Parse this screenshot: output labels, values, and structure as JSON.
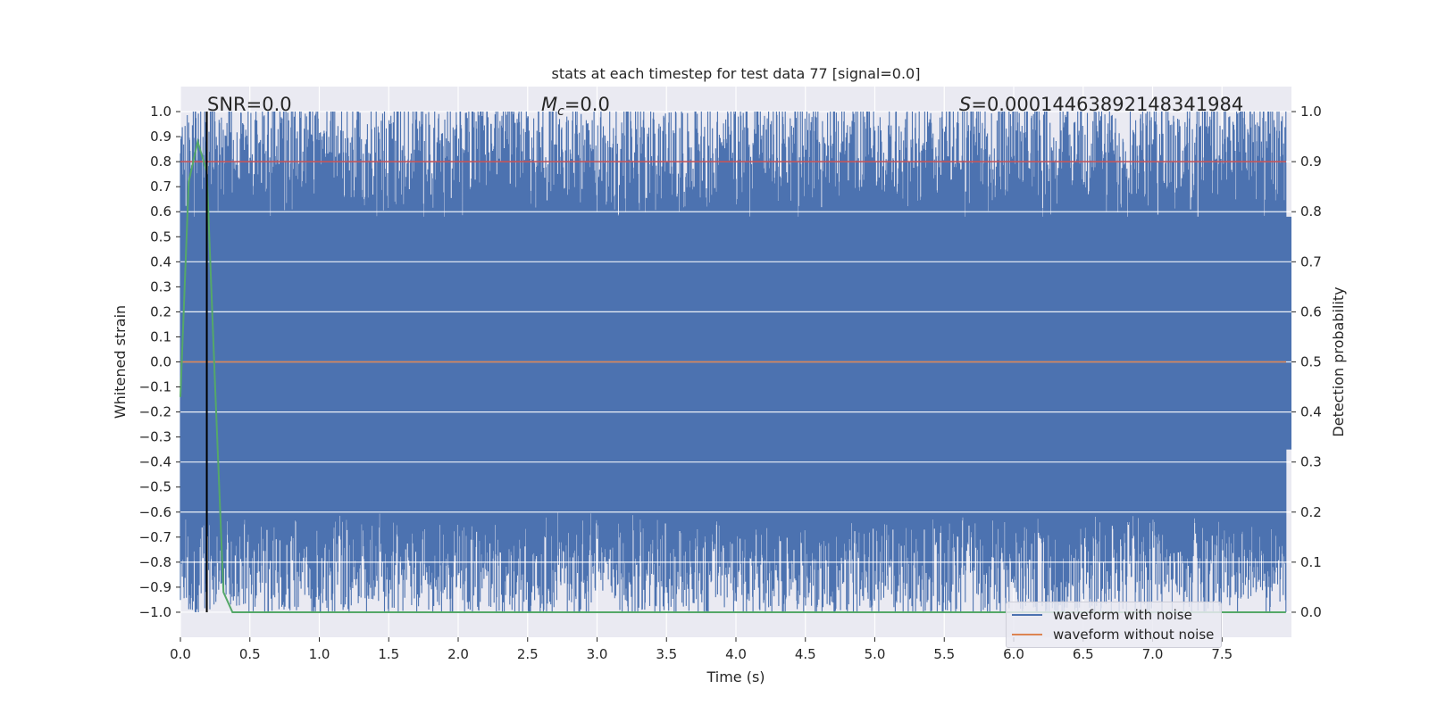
{
  "chart_data": {
    "type": "line",
    "title": "stats at each timestep for test data 77 [signal=0.0]",
    "xlabel": "Time (s)",
    "ylabel_left": "Whitened strain",
    "ylabel_right": "Detection probability",
    "xlim": [
      0.0,
      8.0
    ],
    "ylim_left": [
      -1.1,
      1.1
    ],
    "ylim_right": [
      -0.05,
      1.05
    ],
    "x_ticks": [
      "0.0",
      "0.5",
      "1.0",
      "1.5",
      "2.0",
      "2.5",
      "3.0",
      "3.5",
      "4.0",
      "4.5",
      "5.0",
      "5.5",
      "6.0",
      "6.5",
      "7.0",
      "7.5"
    ],
    "y_left_ticks": [
      "1.0",
      "0.9",
      "0.8",
      "0.7",
      "0.6",
      "0.5",
      "0.4",
      "0.3",
      "0.2",
      "0.1",
      "0.0",
      "−0.1",
      "−0.2",
      "−0.3",
      "−0.4",
      "−0.5",
      "−0.6",
      "−0.7",
      "−0.8",
      "−0.9",
      "−1.0"
    ],
    "y_right_ticks": [
      "1.0",
      "0.9",
      "0.8",
      "0.7",
      "0.6",
      "0.5",
      "0.4",
      "0.3",
      "0.2",
      "0.1",
      "0.0"
    ],
    "annotations": {
      "snr": "SNR=0.0",
      "mc_symbol": "M",
      "mc_sub": "c",
      "mc_value": "=0.0",
      "s_symbol": "S",
      "s_value": "=0.00014463892148341984"
    },
    "series": [
      {
        "name": "waveform with noise",
        "color": "#4c72b0",
        "axis": "left",
        "description_values": {
          "min": -1.0,
          "max": 1.0
        }
      },
      {
        "name": "waveform without noise",
        "color": "#dd8452",
        "axis": "left",
        "x": [
          0.0,
          8.0
        ],
        "y": [
          0.0,
          0.0
        ]
      },
      {
        "name": "detection probability",
        "color": "#55a868",
        "axis": "right",
        "x": [
          0.0,
          0.06,
          0.125,
          0.19,
          0.25,
          0.31,
          0.375,
          0.5,
          1.0,
          2.0,
          4.0,
          6.0,
          8.0
        ],
        "y": [
          0.43,
          0.86,
          0.94,
          0.88,
          0.45,
          0.04,
          0.0,
          0.0,
          0.0,
          0.0,
          0.0,
          0.0,
          0.0
        ]
      },
      {
        "name": "threshold",
        "color": "#c44e52",
        "axis": "right",
        "x": [
          0.0,
          8.0
        ],
        "y": [
          0.9,
          0.9
        ]
      }
    ],
    "vertical_marker": {
      "x": 0.19,
      "color": "#000000"
    },
    "legend": {
      "placement": "lower-right",
      "entries": [
        {
          "label": "waveform with noise",
          "color": "#4c72b0"
        },
        {
          "label": "waveform without noise",
          "color": "#dd8452"
        }
      ]
    }
  }
}
